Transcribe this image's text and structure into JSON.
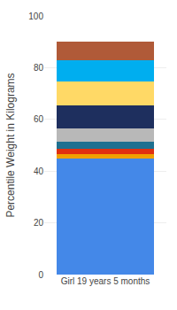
{
  "chart_data": {
    "type": "bar",
    "stacked": true,
    "categories": [
      "Girl 19 years 5 months"
    ],
    "ylabel": "Percentile Weight in Kilograms",
    "series": [
      {
        "color": "#4488E8",
        "values": [
          45
        ]
      },
      {
        "color": "#F0A000",
        "values": [
          1.5
        ]
      },
      {
        "color": "#E03010",
        "values": [
          2.0
        ]
      },
      {
        "color": "#1E7090",
        "values": [
          3.0
        ]
      },
      {
        "color": "#B8B8B8",
        "values": [
          5.0
        ]
      },
      {
        "color": "#1E2F5E",
        "values": [
          9.0
        ]
      },
      {
        "color": "#FFD966",
        "values": [
          9.0
        ]
      },
      {
        "color": "#00AEEF",
        "values": [
          8.5
        ]
      },
      {
        "color": "#B05A38",
        "values": [
          7.0
        ]
      }
    ],
    "ylim": [
      0,
      100
    ],
    "yticks": [
      0,
      20,
      40,
      60,
      80,
      100
    ],
    "grid": true
  }
}
